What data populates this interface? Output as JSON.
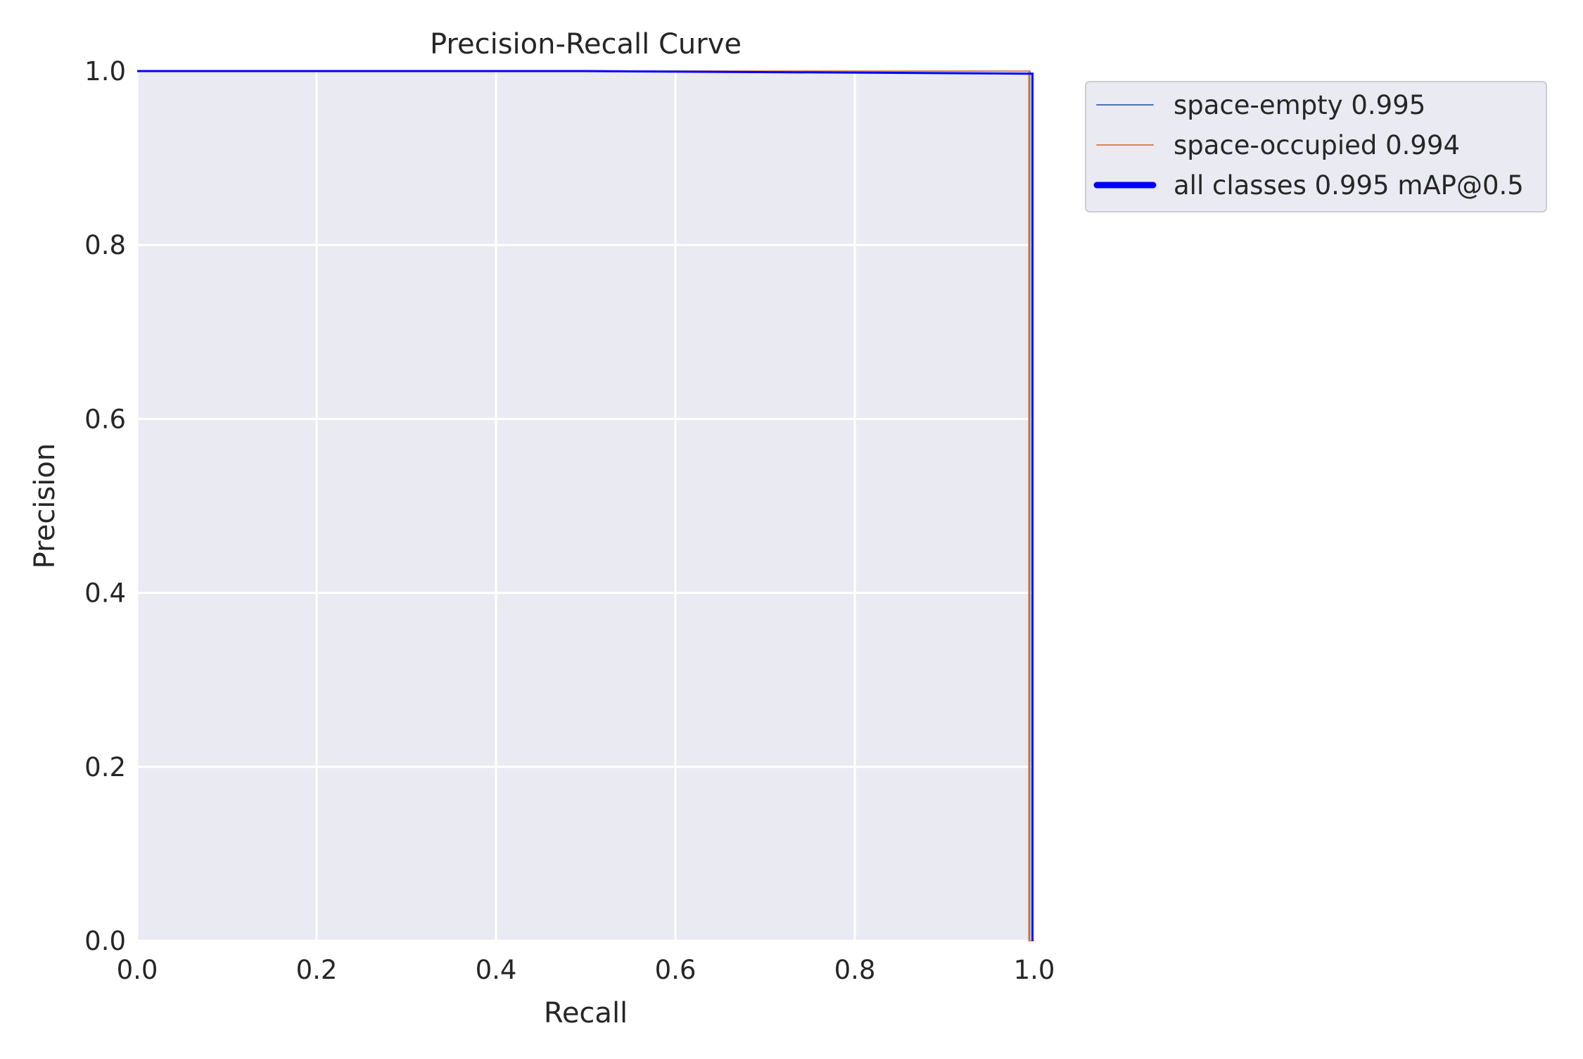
{
  "chart_data": {
    "type": "line",
    "title": "Precision-Recall Curve",
    "xlabel": "Recall",
    "ylabel": "Precision",
    "xlim": [
      0,
      1
    ],
    "ylim": [
      0,
      1
    ],
    "xticks": [
      "0.0",
      "0.2",
      "0.4",
      "0.6",
      "0.8",
      "1.0"
    ],
    "yticks": [
      "0.0",
      "0.2",
      "0.4",
      "0.6",
      "0.8",
      "1.0"
    ],
    "grid": true,
    "legend_position": "outside-top-right",
    "background_color": "#eaeaf2",
    "series": [
      {
        "name": "space-empty 0.995",
        "color": "#4c72b0",
        "width": "thin",
        "x": [
          0.0,
          0.995,
          0.995,
          1.0
        ],
        "y": [
          1.0,
          1.0,
          0.0,
          0.0
        ]
      },
      {
        "name": "space-occupied 0.994",
        "color": "#dd8452",
        "width": "thin",
        "x": [
          0.0,
          0.994,
          0.994,
          1.0
        ],
        "y": [
          1.0,
          1.0,
          0.0,
          0.0
        ]
      },
      {
        "name": "all classes 0.995 mAP@0.5",
        "color": "#0000ff",
        "width": "thick",
        "x": [
          0.0,
          0.5,
          0.998,
          0.998
        ],
        "y": [
          1.0,
          1.0,
          0.997,
          0.0
        ]
      }
    ]
  }
}
